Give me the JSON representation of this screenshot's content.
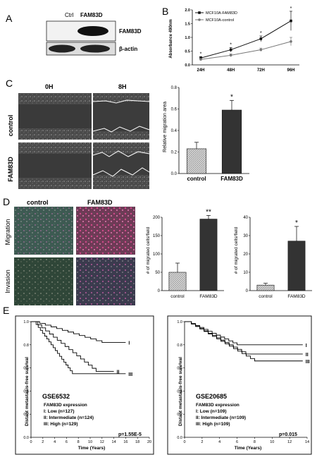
{
  "panels": {
    "A": {
      "letter": "A",
      "lanes": [
        "Ctrl",
        "FAM83D"
      ],
      "bands": [
        "FAM83D",
        "β-actin"
      ]
    },
    "B": {
      "letter": "B",
      "chart_data": {
        "type": "line",
        "categories": [
          "24H",
          "48H",
          "72H",
          "96H"
        ],
        "series": [
          {
            "name": "MCF10A-FAM83D",
            "values": [
              0.25,
              0.55,
              0.95,
              1.6
            ],
            "errors": [
              0.05,
              0.08,
              0.1,
              0.35
            ]
          },
          {
            "name": "MCF10A-control",
            "values": [
              0.2,
              0.35,
              0.55,
              0.85
            ],
            "errors": [
              0.03,
              0.05,
              0.06,
              0.15
            ]
          }
        ],
        "ylabel": "Absorbance 490nm",
        "yticks": [
          "0.0",
          "0.5",
          "1.0",
          "1.5",
          "2.0"
        ],
        "ylim": [
          0,
          2.0
        ],
        "asterisks": [
          "*",
          "*",
          "*",
          "*"
        ]
      }
    },
    "C": {
      "letter": "C",
      "time_labels": [
        "0H",
        "8H"
      ],
      "row_labels": [
        "control",
        "FAM83D"
      ],
      "chart_data": {
        "type": "bar",
        "categories": [
          "control",
          "FAM83D"
        ],
        "values": [
          0.23,
          0.59
        ],
        "errors": [
          0.06,
          0.09
        ],
        "ylabel": "Relative migration area",
        "yticks": [
          "0.0",
          "0.2",
          "0.4",
          "0.6",
          "0.8"
        ],
        "ylim": [
          0,
          0.8
        ],
        "significance": "*"
      }
    },
    "D": {
      "letter": "D",
      "col_labels": [
        "control",
        "FAM83D"
      ],
      "row_labels": [
        "Migration",
        "Invasion"
      ],
      "chart_data": [
        {
          "type": "bar",
          "categories": [
            "control",
            "FAM83D"
          ],
          "values": [
            50,
            195
          ],
          "errors": [
            25,
            10
          ],
          "ylabel": "# of migrated cells/field",
          "yticks": [
            "0",
            "50",
            "100",
            "150",
            "200"
          ],
          "ylim": [
            0,
            200
          ],
          "significance": "**"
        },
        {
          "type": "bar",
          "categories": [
            "control",
            "FAM83D"
          ],
          "values": [
            3,
            27
          ],
          "errors": [
            1,
            8
          ],
          "ylabel": "# of migrated cells/field",
          "yticks": [
            "0",
            "10",
            "20",
            "30",
            "40"
          ],
          "ylim": [
            0,
            40
          ],
          "significance": "*"
        }
      ]
    },
    "E": {
      "letter": "E",
      "plots": [
        {
          "dataset": "GSE6532",
          "legend_title": "FAM83D expression",
          "groups": [
            "I: Low (n=127)",
            "II: Intermediate (n=124)",
            "III: High (n=129)"
          ],
          "pvalue": "p=1.55E-5",
          "ylabel": "Distant metastasis-free survival",
          "xlabel": "Time (Years)",
          "yticks": [
            "0.0",
            "0.2",
            "0.4",
            "0.6",
            "0.8",
            "1.0"
          ],
          "xticks": [
            "0",
            "2",
            "4",
            "6",
            "8",
            "10",
            "12",
            "14",
            "16",
            "18",
            "20"
          ],
          "curve_labels": [
            "I",
            "II",
            "III"
          ]
        },
        {
          "dataset": "GSE20685",
          "legend_title": "FAM83D expression",
          "groups": [
            "I: Low (n=109)",
            "II: Intermediate (n=109)",
            "III: High (n=109)"
          ],
          "pvalue": "p=0.015",
          "ylabel": "Distant metastasis-free survival",
          "xlabel": "Time (Years)",
          "yticks": [
            "0.0",
            "0.2",
            "0.4",
            "0.6",
            "0.8",
            "1.0"
          ],
          "xticks": [
            "0",
            "2",
            "4",
            "6",
            "8",
            "10",
            "12",
            "14"
          ],
          "curve_labels": [
            "I",
            "II",
            "III"
          ]
        }
      ]
    }
  }
}
